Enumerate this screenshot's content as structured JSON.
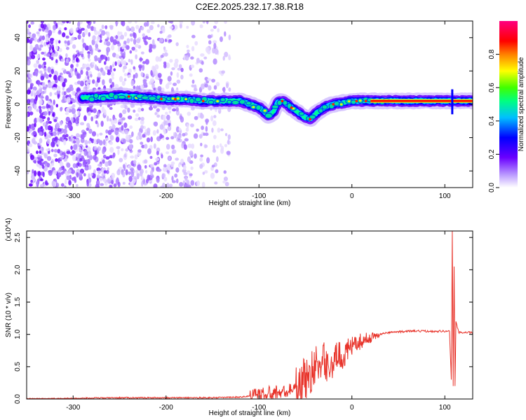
{
  "page": {
    "title": "C2E2.2025.232.17.38.R18"
  },
  "colors": {
    "ridge": "#ff0000",
    "snr_line": "#e8332a",
    "noise": "#8b39ff",
    "axis": "#000000"
  },
  "chart_data": [
    {
      "type": "heatmap",
      "title": "C2E2.2025.232.17.38.R18",
      "xlabel": "Height of straight line (km)",
      "ylabel": "Frequency (Hz)",
      "xlim": [
        -350,
        130
      ],
      "ylim": [
        -50,
        50
      ],
      "xticks": [
        -300,
        -200,
        -100,
        0,
        100
      ],
      "yticks": [
        -40,
        -20,
        0,
        20,
        40
      ],
      "colorbar": {
        "label": "Normalized spectral amplitude",
        "range": [
          0,
          1
        ],
        "ticks": [
          "0.0",
          "0.2",
          "0.4",
          "0.6",
          "0.8"
        ],
        "colormap": "rainbow (white-violet-blue-cyan-green-yellow-red-pink)"
      },
      "ridge": {
        "x": [
          -280,
          -250,
          -220,
          -200,
          -180,
          -160,
          -140,
          -120,
          -110,
          -100,
          -95,
          -90,
          -85,
          -80,
          -75,
          -70,
          -65,
          -60,
          -55,
          -50,
          -45,
          -40,
          -30,
          -20,
          -10,
          0,
          20,
          40,
          60,
          80,
          95,
          100,
          105,
          110,
          120,
          130
        ],
        "y": [
          4,
          5,
          4,
          3,
          3,
          2,
          2,
          2,
          0,
          -2,
          -4,
          -7,
          -5,
          1,
          2,
          0,
          -2,
          -4,
          -6,
          -8,
          -9,
          -6,
          -2,
          0,
          1,
          2,
          2,
          2,
          2,
          2,
          2,
          2,
          2,
          2,
          2,
          2
        ]
      },
      "noise_region": {
        "x_range": [
          -350,
          -130
        ],
        "y_range": [
          -50,
          50
        ]
      }
    },
    {
      "type": "line",
      "xlabel": "Height of straight line (km)",
      "ylabel": "SNR (10 * v/v)",
      "y_multiplier": "(x10^4)",
      "xlim": [
        -350,
        130
      ],
      "ylim": [
        0,
        2.6
      ],
      "xticks": [
        -300,
        -200,
        -100,
        0,
        100
      ],
      "yticks": [
        "0.0",
        "0.5",
        "1.0",
        "1.5",
        "2.0",
        "2.5"
      ],
      "series": [
        {
          "x": [
            -350,
            -300,
            -250,
            -200,
            -150,
            -120,
            -100,
            -90,
            -80,
            -70,
            -60,
            -50,
            -45,
            -40,
            -35,
            -30,
            -25,
            -20,
            -15,
            -10,
            -5,
            0,
            5,
            10,
            20,
            30,
            40,
            60,
            80,
            100,
            105,
            107,
            108,
            109,
            110,
            111,
            112,
            115,
            120,
            130
          ],
          "y": [
            0.0,
            0.01,
            0.02,
            0.02,
            0.02,
            0.03,
            0.06,
            0.08,
            0.1,
            0.12,
            0.2,
            0.3,
            0.4,
            0.5,
            0.55,
            0.6,
            0.5,
            0.55,
            0.7,
            0.65,
            0.75,
            0.8,
            0.85,
            0.9,
            0.95,
            1.0,
            1.03,
            1.05,
            1.05,
            1.05,
            1.05,
            0.3,
            2.6,
            0.2,
            2.05,
            0.2,
            1.2,
            1.03,
            1.03,
            1.03
          ]
        }
      ]
    }
  ]
}
